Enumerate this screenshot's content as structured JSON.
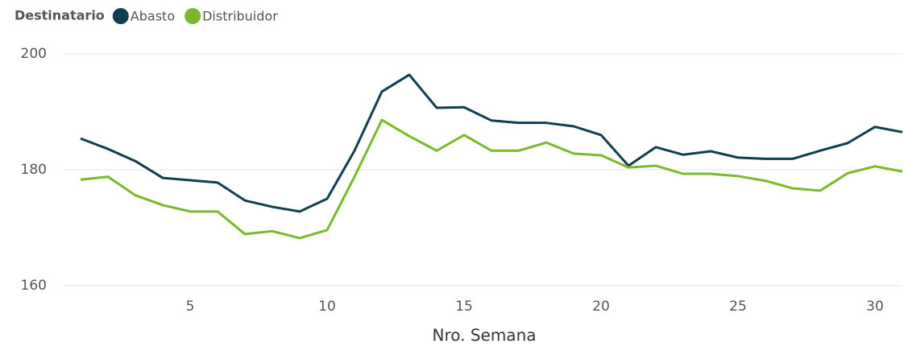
{
  "chart_data": {
    "type": "line",
    "legend_title": "Destinatario",
    "x_label": "Nro. Semana",
    "x": [
      1,
      2,
      3,
      4,
      5,
      6,
      7,
      8,
      9,
      10,
      11,
      12,
      13,
      14,
      15,
      16,
      17,
      18,
      19,
      20,
      21,
      22,
      23,
      24,
      25,
      26,
      27,
      28,
      29,
      30,
      31
    ],
    "series": [
      {
        "name": "Abasto",
        "color": "#123f4f",
        "values": [
          185.4,
          183.6,
          181.5,
          178.6,
          178.2,
          177.8,
          174.7,
          173.6,
          172.8,
          175,
          183.3,
          193.5,
          196.4,
          190.7,
          190.8,
          188.5,
          188.1,
          188.1,
          187.5,
          186,
          180.7,
          183.9,
          182.6,
          183.2,
          182.1,
          181.9,
          181.9,
          183.3,
          184.6,
          187.4,
          186.5
        ]
      },
      {
        "name": "Distribuidor",
        "color": "#7ab929",
        "values": [
          178.3,
          178.8,
          175.6,
          173.9,
          172.8,
          172.8,
          168.9,
          169.4,
          168.2,
          169.6,
          178.8,
          188.6,
          185.8,
          183.3,
          186,
          183.3,
          183.3,
          184.7,
          182.8,
          182.5,
          180.4,
          180.7,
          179.3,
          179.3,
          178.9,
          178.1,
          176.8,
          176.4,
          179.4,
          180.6,
          179.7
        ]
      }
    ],
    "xlim": [
      0.5,
      31
    ],
    "xticks": [
      5,
      10,
      15,
      20,
      25,
      30
    ],
    "ylim": [
      160,
      200
    ],
    "yticks": [
      160,
      180,
      200
    ],
    "grid": true
  }
}
